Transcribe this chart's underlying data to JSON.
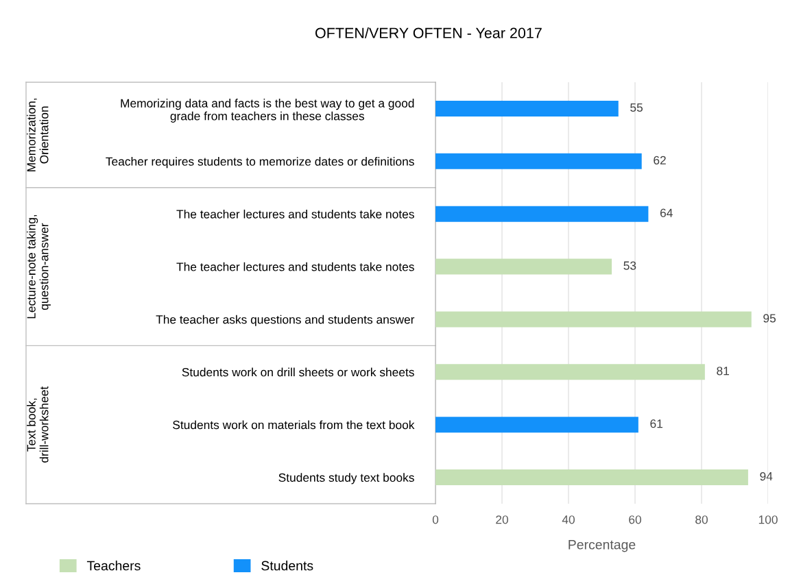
{
  "chart_data": {
    "type": "bar",
    "orientation": "horizontal",
    "title": "OFTEN/VERY OFTEN - Year 2017",
    "xlabel": "Percentage",
    "categories": [
      "Memorizing data and facts is the best way to get a good grade from teachers in these classes",
      "Teacher requires students to memorize dates or definitions",
      "The teacher lectures and students take notes",
      "The teacher lectures and students take notes",
      "The teacher asks questions and students answer",
      "Students work on drill sheets or work sheets",
      "Students work on materials from the text book",
      "Students study text books"
    ],
    "series": [
      {
        "name": "Teachers",
        "color": "#c5e0b4",
        "values": [
          null,
          null,
          null,
          53,
          95,
          81,
          null,
          94
        ]
      },
      {
        "name": "Students",
        "color": "#1391fa",
        "values": [
          55,
          62,
          64,
          null,
          null,
          null,
          61,
          null
        ]
      }
    ],
    "annotations": [
      "Memorization, Orientation",
      "Lecture-note taking, question-answer",
      "Text book, drill-worksheet"
    ],
    "xlim": [
      0,
      100
    ],
    "xticks": [
      0,
      20,
      40,
      60,
      80,
      100
    ],
    "grid": "x",
    "legend": "bottom",
    "data_labels": true
  }
}
